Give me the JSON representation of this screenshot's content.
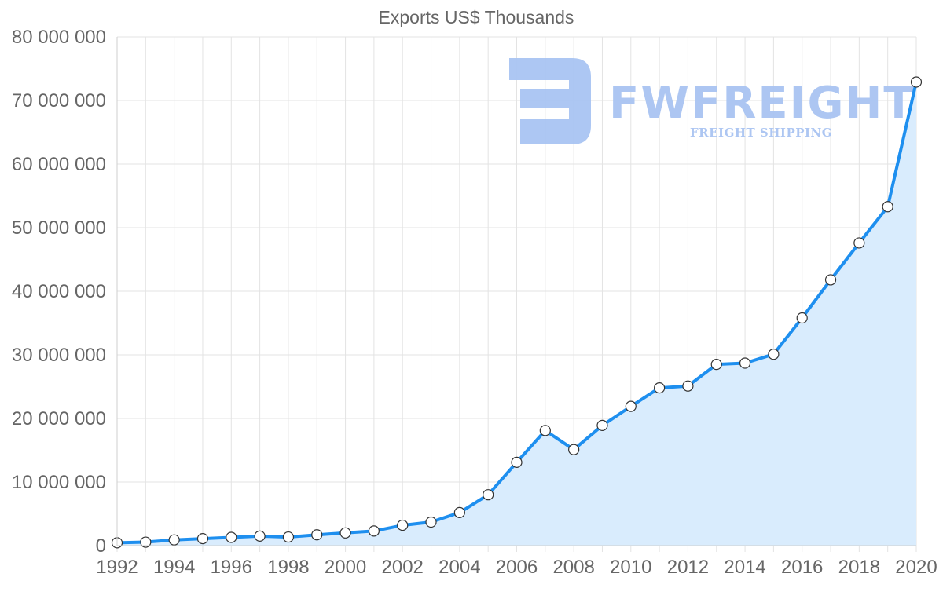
{
  "watermark": {
    "name": "FWFREIGHT",
    "tagline": "FREIGHT SHIPPING",
    "color": "#a9c4f2"
  },
  "chart_data": {
    "type": "area",
    "title": "Exports US$ Thousands",
    "xlabel": "",
    "ylabel": "",
    "x": [
      1992,
      1993,
      1994,
      1995,
      1996,
      1997,
      1998,
      1999,
      2000,
      2001,
      2002,
      2003,
      2004,
      2005,
      2006,
      2007,
      2008,
      2009,
      2010,
      2011,
      2012,
      2013,
      2014,
      2015,
      2016,
      2017,
      2018,
      2019,
      2020
    ],
    "series": [
      {
        "name": "Exports US$ Thousands",
        "values": [
          450000,
          550000,
          900000,
          1100000,
          1300000,
          1500000,
          1350000,
          1700000,
          2000000,
          2300000,
          3200000,
          3700000,
          5200000,
          8000000,
          13100000,
          18100000,
          15100000,
          18900000,
          21900000,
          24800000,
          25100000,
          28500000,
          28700000,
          30100000,
          35800000,
          41800000,
          47600000,
          53300000,
          72900000
        ],
        "line_color": "#1e8fef",
        "fill_color": "#d9ecfd"
      }
    ],
    "xlim": [
      1992,
      2020
    ],
    "ylim": [
      0,
      80000000
    ],
    "x_ticks": [
      "1992",
      "1994",
      "1996",
      "1998",
      "2000",
      "2002",
      "2004",
      "2006",
      "2008",
      "2010",
      "2012",
      "2014",
      "2016",
      "2018",
      "2020"
    ],
    "y_ticks": [
      "0",
      "10 000 000",
      "20 000 000",
      "30 000 000",
      "40 000 000",
      "50 000 000",
      "60 000 000",
      "70 000 000",
      "80 000 000"
    ],
    "grid": true,
    "legend": "none"
  }
}
